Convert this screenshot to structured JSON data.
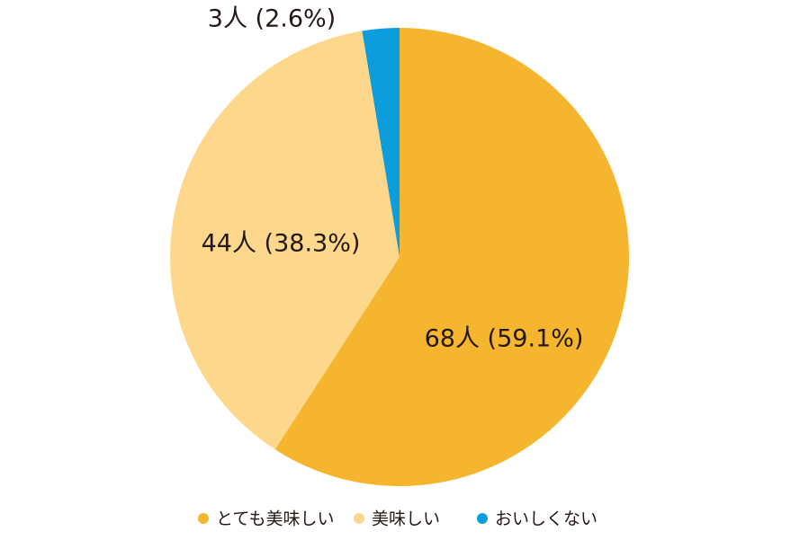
{
  "chart_data": {
    "type": "pie",
    "categories": [
      "とても美味しい",
      "美味しい",
      "おいしくない"
    ],
    "values": [
      68,
      44,
      3
    ],
    "value_labels": [
      "68人 (59.1%)",
      "44人 (38.3%)",
      "3人 (2.6%)"
    ],
    "colors": [
      "#f5b52e",
      "#fdd78c",
      "#0b9ddc"
    ],
    "legend": "bottom"
  }
}
